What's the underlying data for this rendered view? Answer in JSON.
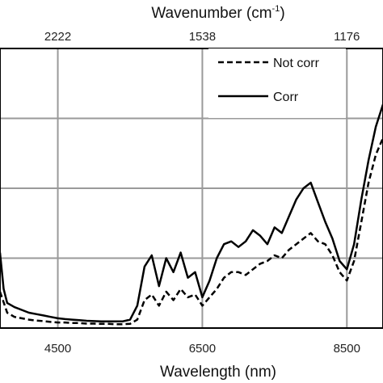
{
  "chart_data": {
    "type": "line",
    "top_axis": {
      "label": "Wavenumber (cm",
      "label_sup": "-1",
      "label_end": ")",
      "ticks": [
        "2222",
        "1538",
        "1176"
      ]
    },
    "bottom_axis": {
      "label": "Wavelength (nm)",
      "ticks": [
        4500,
        6500,
        8500
      ]
    },
    "xlim": [
      3700,
      9000
    ],
    "ylim": [
      0,
      1
    ],
    "grid": true,
    "legend": {
      "placement": "top-right"
    },
    "series": [
      {
        "name": "Not corr",
        "style": "dashed",
        "color": "#000000",
        "x": [
          3700,
          3800,
          3900,
          4000,
          4100,
          4200,
          4300,
          4400,
          4500,
          4600,
          4700,
          4800,
          4900,
          5000,
          5100,
          5200,
          5300,
          5400,
          5500,
          5600,
          5700,
          5800,
          5900,
          6000,
          6100,
          6200,
          6300,
          6400,
          6500,
          6600,
          6700,
          6800,
          6900,
          7000,
          7100,
          7200,
          7300,
          7400,
          7500,
          7600,
          7700,
          7800,
          7900,
          8000,
          8100,
          8200,
          8300,
          8400,
          8500,
          8600,
          8700,
          8800,
          8900,
          9000
        ],
        "y": [
          0.13,
          0.055,
          0.04,
          0.035,
          0.03,
          0.027,
          0.025,
          0.022,
          0.02,
          0.02,
          0.018,
          0.018,
          0.016,
          0.016,
          0.015,
          0.015,
          0.014,
          0.014,
          0.015,
          0.03,
          0.1,
          0.12,
          0.08,
          0.13,
          0.1,
          0.14,
          0.11,
          0.12,
          0.08,
          0.11,
          0.14,
          0.18,
          0.2,
          0.2,
          0.19,
          0.21,
          0.23,
          0.24,
          0.26,
          0.25,
          0.28,
          0.3,
          0.32,
          0.34,
          0.31,
          0.3,
          0.26,
          0.2,
          0.17,
          0.24,
          0.38,
          0.52,
          0.62,
          0.68
        ]
      },
      {
        "name": "Corr",
        "style": "solid",
        "color": "#000000",
        "x": [
          3700,
          3750,
          3800,
          3900,
          4000,
          4100,
          4200,
          4300,
          4400,
          4500,
          4600,
          4700,
          4800,
          4900,
          5000,
          5100,
          5200,
          5300,
          5400,
          5500,
          5600,
          5700,
          5800,
          5900,
          6000,
          6100,
          6200,
          6300,
          6400,
          6500,
          6600,
          6700,
          6800,
          6900,
          7000,
          7100,
          7200,
          7300,
          7400,
          7500,
          7600,
          7700,
          7800,
          7900,
          8000,
          8100,
          8200,
          8300,
          8400,
          8500,
          8600,
          8700,
          8800,
          8900,
          9000
        ],
        "y": [
          0.27,
          0.14,
          0.09,
          0.075,
          0.065,
          0.055,
          0.05,
          0.045,
          0.04,
          0.035,
          0.032,
          0.03,
          0.028,
          0.026,
          0.025,
          0.024,
          0.024,
          0.024,
          0.024,
          0.03,
          0.08,
          0.22,
          0.26,
          0.15,
          0.25,
          0.2,
          0.27,
          0.18,
          0.2,
          0.11,
          0.17,
          0.25,
          0.3,
          0.31,
          0.29,
          0.31,
          0.35,
          0.33,
          0.3,
          0.36,
          0.34,
          0.4,
          0.46,
          0.5,
          0.52,
          0.45,
          0.38,
          0.32,
          0.24,
          0.21,
          0.3,
          0.46,
          0.6,
          0.72,
          0.8
        ]
      }
    ]
  }
}
